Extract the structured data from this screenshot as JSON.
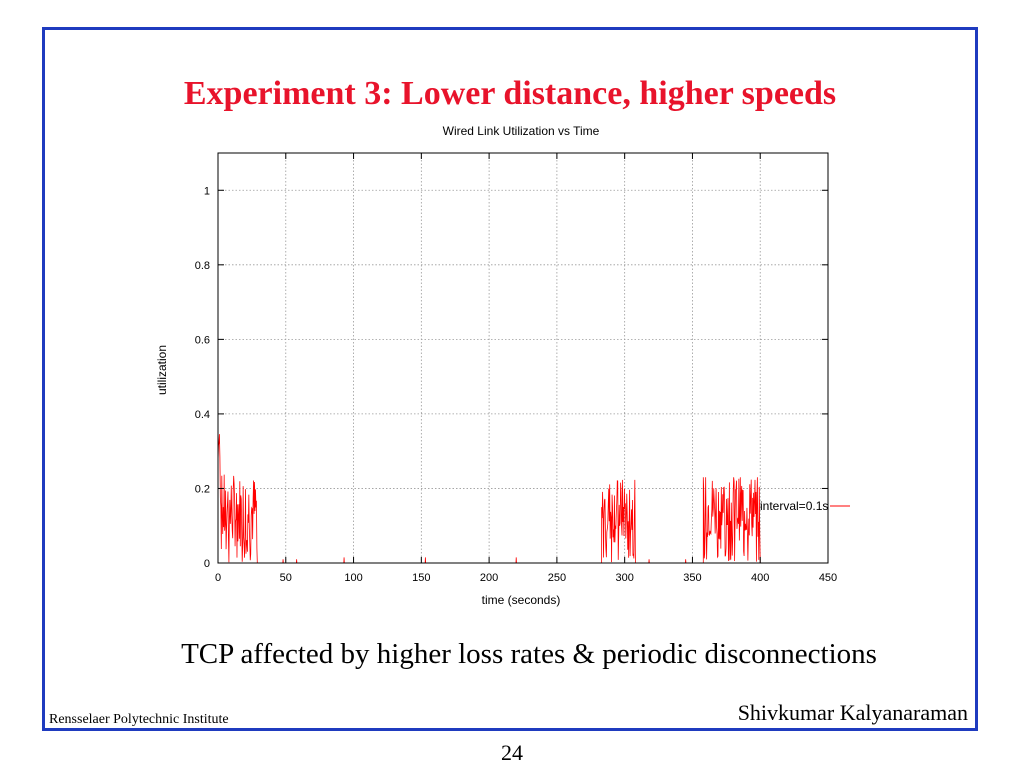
{
  "slide": {
    "title": "Experiment 3: Lower distance, higher speeds",
    "caption": "TCP affected by higher loss rates & periodic disconnections",
    "footer_left": "Rensselaer Polytechnic Institute",
    "footer_right": "Shivkumar Kalyanaraman",
    "page_number": "24",
    "title_color": "#e8132b",
    "border_color": "#1f3bbf"
  },
  "chart_data": {
    "type": "line",
    "title": "Wired Link Utilization vs Time",
    "xlabel": "time (seconds)",
    "ylabel": "utilization",
    "xlim": [
      0,
      450
    ],
    "ylim": [
      0,
      1.1
    ],
    "x_ticks": [
      0,
      50,
      100,
      150,
      200,
      250,
      300,
      350,
      400,
      450
    ],
    "y_ticks": [
      0,
      0.2,
      0.4,
      0.6,
      0.8,
      1
    ],
    "y_tick_labels": [
      "0",
      "0.2",
      "0.4",
      "0.6",
      "0.8",
      "1"
    ],
    "grid": true,
    "legend_position": "right",
    "series": [
      {
        "name": "interval=0.1s",
        "color": "#ff0000",
        "bursts": [
          {
            "start": 0,
            "end": 29,
            "mean": 0.14,
            "spread": 0.1,
            "peak": 0.37
          },
          {
            "start": 283,
            "end": 308,
            "mean": 0.14,
            "spread": 0.09,
            "peak": 0.23
          },
          {
            "start": 358,
            "end": 400,
            "mean": 0.15,
            "spread": 0.09,
            "peak": 0.23
          }
        ],
        "spikes": [
          {
            "x": 48,
            "y": 0.01
          },
          {
            "x": 58,
            "y": 0.01
          },
          {
            "x": 93,
            "y": 0.015
          },
          {
            "x": 153,
            "y": 0.015
          },
          {
            "x": 220,
            "y": 0.015
          },
          {
            "x": 318,
            "y": 0.01
          },
          {
            "x": 345,
            "y": 0.01
          }
        ]
      }
    ]
  }
}
